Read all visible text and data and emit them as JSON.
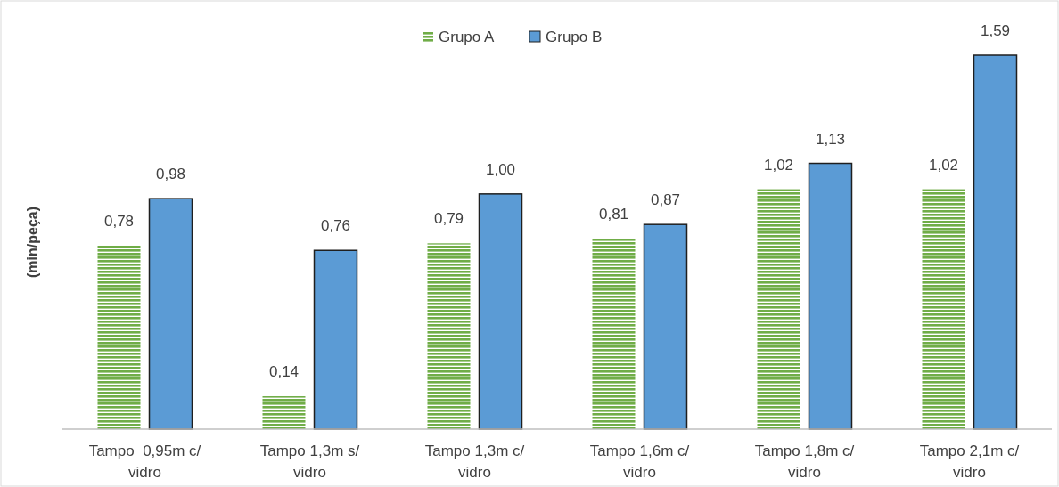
{
  "chart_data": {
    "type": "bar",
    "ylabel": "(min/peça)",
    "categories": [
      "Tampo  0,95m c/ vidro",
      "Tampo 1,3m s/ vidro",
      "Tampo 1,3m c/ vidro",
      "Tampo 1,6m c/ vidro",
      "Tampo 1,8m c/ vidro",
      "Tampo 2,1m c/ vidro"
    ],
    "series": [
      {
        "name": "Grupo A",
        "color": "#70ad47",
        "values": [
          0.78,
          0.14,
          0.79,
          0.81,
          1.02,
          1.02
        ],
        "value_labels": [
          "0,78",
          "0,14",
          "0,79",
          "0,81",
          "1,02",
          "1,02"
        ]
      },
      {
        "name": "Grupo B",
        "color": "#5b9bd5",
        "values": [
          0.98,
          0.76,
          1.0,
          0.87,
          1.13,
          1.59
        ],
        "value_labels": [
          "0,98",
          "0,76",
          "1,00",
          "0,87",
          "1,13",
          "1,59"
        ]
      }
    ],
    "legend": "top",
    "grid": false
  }
}
